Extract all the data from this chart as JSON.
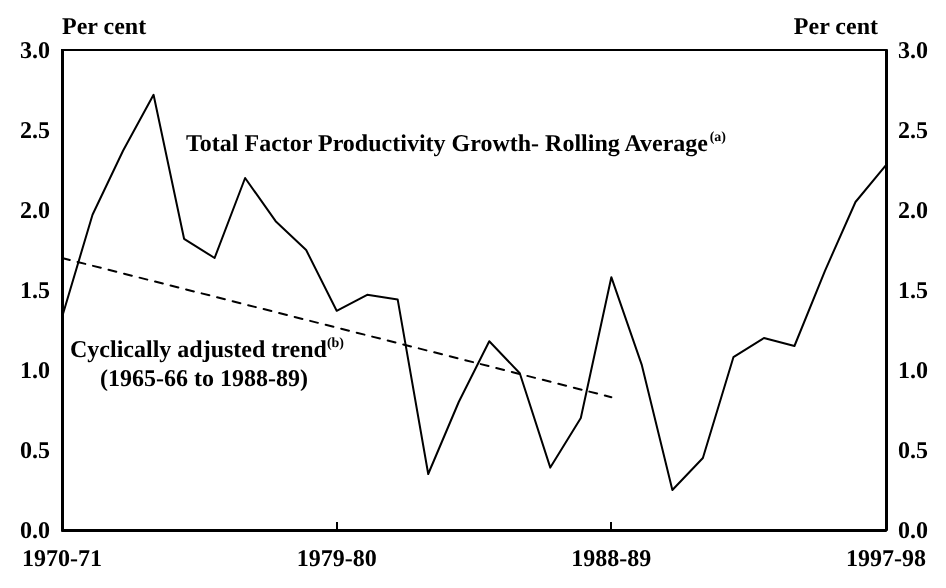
{
  "chart_data": {
    "type": "line",
    "ylabel": "Per cent",
    "y2label": "Per cent",
    "categories": [
      "1970-71",
      null,
      null,
      null,
      null,
      null,
      null,
      null,
      null,
      "1979-80",
      null,
      null,
      null,
      null,
      null,
      null,
      null,
      null,
      "1988-89",
      null,
      null,
      null,
      null,
      null,
      null,
      null,
      null,
      "1997-98"
    ],
    "series": [
      {
        "color": "#000000",
        "line_style": "solid",
        "values": [
          1.33,
          1.97,
          2.37,
          2.72,
          1.82,
          1.7,
          2.2,
          1.93,
          1.75,
          1.37,
          1.47,
          1.44,
          0.35,
          0.8,
          1.18,
          0.98,
          0.39,
          0.7,
          1.58,
          1.03,
          0.25,
          0.45,
          1.08,
          1.2,
          1.15,
          1.62,
          2.05,
          2.28
        ]
      },
      {
        "color": "#000000",
        "line_style": "dashed",
        "x": [
          "1970-71",
          "1988-89"
        ],
        "values": [
          1.7,
          0.83
        ]
      }
    ],
    "ylim": [
      0,
      3
    ],
    "yticks": [
      {
        "value": 0,
        "label": "0.0"
      },
      {
        "value": 0.5,
        "label": "0.5"
      },
      {
        "value": 1,
        "label": "1.0"
      },
      {
        "value": 1.5,
        "label": "1.5"
      },
      {
        "value": 2,
        "label": "2.0"
      },
      {
        "value": 2.5,
        "label": "2.5"
      },
      {
        "value": 3,
        "label": "3.0"
      }
    ],
    "y2lim": [
      0,
      3
    ],
    "y2ticks": [
      {
        "value": 0,
        "label": "0.0"
      },
      {
        "value": 0.5,
        "label": "0.5"
      },
      {
        "value": 1,
        "label": "1.0"
      },
      {
        "value": 1.5,
        "label": "1.5"
      },
      {
        "value": 2,
        "label": "2.0"
      },
      {
        "value": 2.5,
        "label": "2.5"
      },
      {
        "value": 3,
        "label": "3.0"
      }
    ],
    "annotations": [
      "Total Factor Productivity Growth- Rolling Average$^{(a)}$",
      "Cyclically adjusted trend$^{(b)}$",
      "(1965-66 to 1988-89)"
    ],
    "grid": false,
    "marker": "none"
  }
}
